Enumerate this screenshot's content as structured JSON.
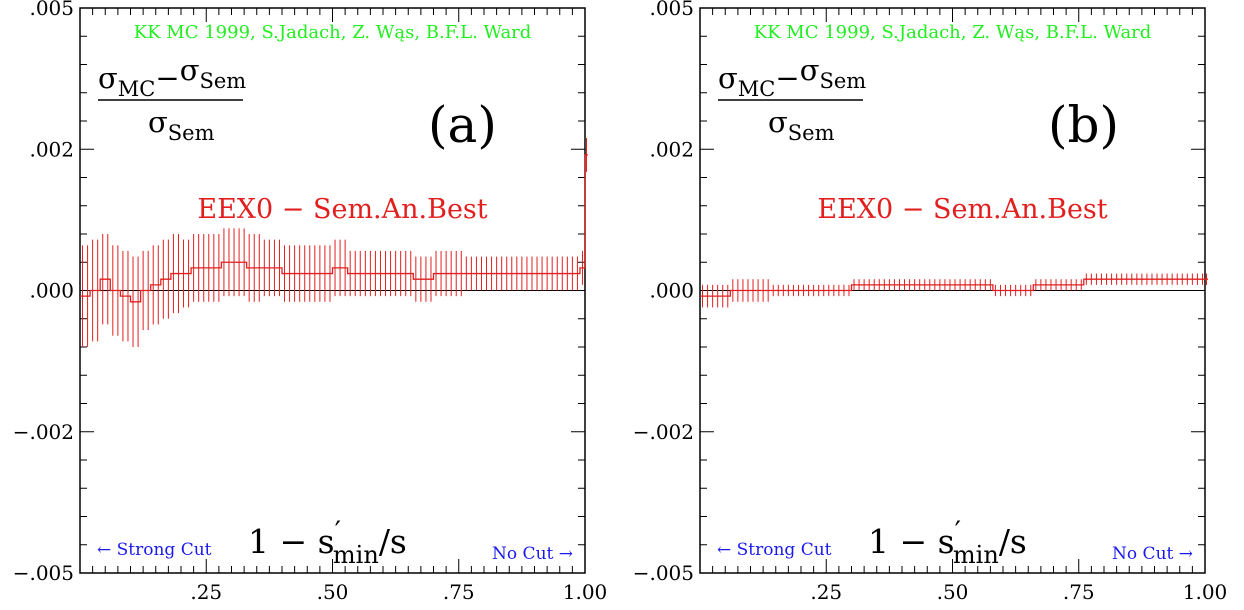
{
  "credit": "KK MC 1999, S.Jadach, Z. Wąs, B.F.L. Ward",
  "formula": {
    "numerator_a": "σ",
    "numerator_a_sub": "MC",
    "numerator_op": "−",
    "numerator_b": "σ",
    "numerator_b_sub": "Sem",
    "denominator": "σ",
    "denominator_sub": "Sem"
  },
  "xlabel": {
    "prefix": "1 − s",
    "prime": "′",
    "sub": "min",
    "suffix": "/s"
  },
  "strong_cut_label": "← Strong Cut",
  "no_cut_label": "No Cut →",
  "chart_data": [
    {
      "type": "line",
      "panel": "(a)",
      "series_label": "EEX0 − Sem.An.Best",
      "xlim": [
        0,
        1
      ],
      "ylim": [
        -0.005,
        0.005
      ],
      "x_ticks": [
        ".25",
        ".50",
        ".75",
        "1.00"
      ],
      "y_ticks": [
        ".005",
        ".002",
        ".000",
        "−.002",
        "−.005"
      ],
      "series": [
        {
          "color": "#e21f1f",
          "x": [
            0.0,
            0.02,
            0.04,
            0.06,
            0.08,
            0.1,
            0.12,
            0.14,
            0.16,
            0.18,
            0.2,
            0.22,
            0.25,
            0.28,
            0.3,
            0.33,
            0.36,
            0.4,
            0.43,
            0.46,
            0.5,
            0.53,
            0.56,
            0.6,
            0.63,
            0.66,
            0.7,
            0.73,
            0.76,
            0.8,
            0.84,
            0.88,
            0.92,
            0.96,
            0.99,
            1.0
          ],
          "y": [
            -0.0001,
            0.0,
            0.0002,
            0.0,
            -0.0001,
            -0.0002,
            0.0,
            0.0001,
            0.0002,
            0.0003,
            0.0003,
            0.0004,
            0.0004,
            0.0005,
            0.0005,
            0.0004,
            0.0004,
            0.0003,
            0.0003,
            0.0003,
            0.0004,
            0.0003,
            0.0003,
            0.0003,
            0.0003,
            0.0002,
            0.0003,
            0.0003,
            0.0003,
            0.0003,
            0.0003,
            0.0003,
            0.0003,
            0.0003,
            0.0004,
            0.0024
          ],
          "err": [
            0.0009,
            0.0009,
            0.0008,
            0.0008,
            0.0008,
            0.0008,
            0.0007,
            0.0007,
            0.0007,
            0.0007,
            0.0006,
            0.0006,
            0.0006,
            0.0006,
            0.0006,
            0.0006,
            0.0005,
            0.0005,
            0.0005,
            0.0005,
            0.0005,
            0.0004,
            0.0004,
            0.0004,
            0.0004,
            0.0004,
            0.0004,
            0.0004,
            0.0003,
            0.0003,
            0.0003,
            0.0003,
            0.0003,
            0.0003,
            0.0003,
            0.0003
          ]
        }
      ]
    },
    {
      "type": "line",
      "panel": "(b)",
      "series_label": "EEX0 − Sem.An.Best",
      "xlim": [
        0,
        1
      ],
      "ylim": [
        -0.005,
        0.005
      ],
      "x_ticks": [
        ".25",
        ".50",
        ".75",
        "1.00"
      ],
      "y_ticks": [
        ".005",
        ".002",
        ".000",
        "−.002",
        "−.005"
      ],
      "series": [
        {
          "color": "#e21f1f",
          "x": [
            0.0,
            0.03,
            0.06,
            0.1,
            0.14,
            0.18,
            0.22,
            0.26,
            0.3,
            0.34,
            0.38,
            0.42,
            0.46,
            0.5,
            0.54,
            0.58,
            0.62,
            0.66,
            0.7,
            0.74,
            0.76,
            0.8,
            0.84,
            0.88,
            0.92,
            0.96,
            1.0
          ],
          "y": [
            -0.0001,
            -0.0001,
            0.0,
            -0.0,
            0.0,
            0.0,
            0.0,
            0.0,
            0.0001,
            0.0001,
            0.0001,
            0.0001,
            0.0001,
            0.0001,
            0.0001,
            0.0,
            0.0,
            0.0001,
            0.0001,
            0.0001,
            0.0002,
            0.0002,
            0.0002,
            0.0002,
            0.0002,
            0.0002,
            0.0002
          ],
          "err": [
            0.0002,
            0.0002,
            0.0002,
            0.0002,
            0.0001,
            0.0001,
            0.0001,
            0.0001,
            0.0001,
            0.0001,
            0.0001,
            0.0001,
            0.0001,
            0.0001,
            0.0001,
            0.0001,
            0.0001,
            0.0001,
            0.0001,
            0.0001,
            0.0001,
            0.0001,
            0.0001,
            0.0001,
            0.0001,
            0.0001,
            0.0001
          ]
        }
      ]
    }
  ]
}
